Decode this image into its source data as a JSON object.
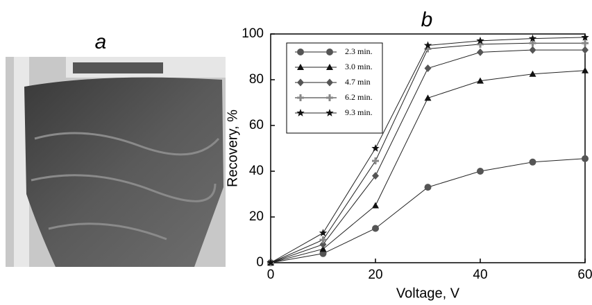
{
  "photo": {
    "label": "a"
  },
  "chart_data": {
    "type": "line",
    "title": "b",
    "x_label": "Voltage, V",
    "y_label": "Recovery, %",
    "x": [
      0,
      10,
      20,
      30,
      40,
      50,
      60
    ],
    "xlim": [
      0,
      60
    ],
    "xticks": [
      0,
      20,
      40,
      60
    ],
    "ylim": [
      0,
      100
    ],
    "yticks": [
      0,
      20,
      40,
      60,
      80,
      100
    ],
    "grid": false,
    "legend": "upper left",
    "series": [
      {
        "name": "2.3 min.",
        "color": "#555555",
        "marker": "circle",
        "values": [
          0,
          4,
          15,
          33,
          40,
          44,
          45.5
        ]
      },
      {
        "name": "3.0 min.",
        "color": "#111111",
        "marker": "triangle",
        "values": [
          0,
          6,
          25,
          72,
          79.5,
          82.5,
          84
        ]
      },
      {
        "name": "4.7 min",
        "color": "#555555",
        "marker": "diamond",
        "values": [
          0,
          8,
          38,
          85,
          92,
          93,
          93
        ]
      },
      {
        "name": "6.2 min.",
        "color": "#888888",
        "marker": "plus",
        "values": [
          0,
          10,
          44.5,
          93.5,
          95.5,
          96,
          96
        ]
      },
      {
        "name": "9.3 min.",
        "color": "#111111",
        "marker": "star",
        "values": [
          0,
          13,
          50,
          95,
          97,
          98,
          98.5
        ]
      }
    ]
  }
}
